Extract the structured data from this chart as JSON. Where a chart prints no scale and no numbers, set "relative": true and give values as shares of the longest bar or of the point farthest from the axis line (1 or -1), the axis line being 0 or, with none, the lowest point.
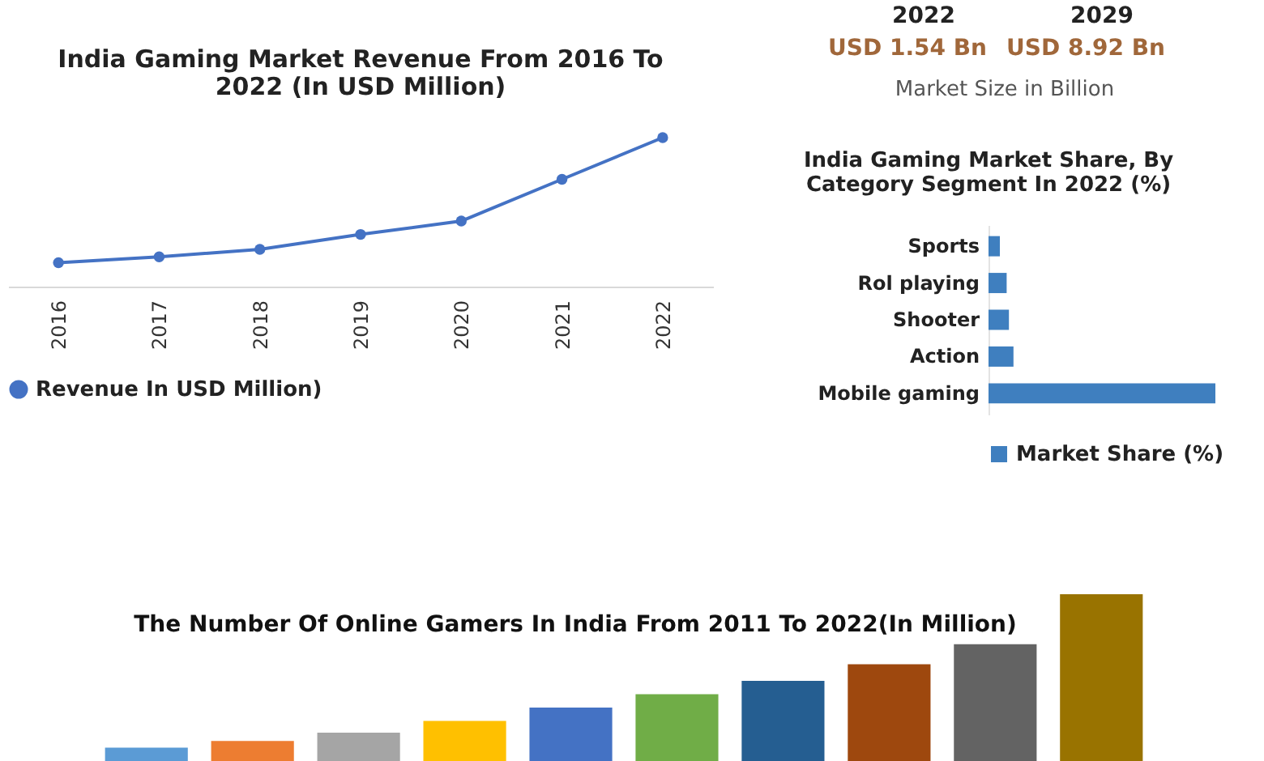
{
  "chart_data": [
    {
      "type": "line",
      "title": "India Gaming Market Revenue From 2016 To 2022 (In USD Million)",
      "categories": [
        "2016",
        "2017",
        "2018",
        "2019",
        "2020",
        "2021",
        "2022"
      ],
      "series": [
        {
          "name": "Revenue In USD Million)",
          "color": "#4472c4",
          "values": [
            0.16,
            0.2,
            0.25,
            0.35,
            0.44,
            0.72,
            1
          ]
        }
      ],
      "relative": true,
      "marker": "circle",
      "legend": "bottom"
    },
    {
      "type": "other",
      "annotations": [
        "2022",
        "2029",
        "USD 1.54 Bn",
        "USD 8.92 Bn",
        "Market Size in Billion"
      ]
    },
    {
      "type": "bar",
      "orientation": "horizontal",
      "title": "India Gaming Market Share, By Category Segment In 2022 (%)",
      "categories": [
        "Sports",
        "Rol playing",
        "Shooter",
        "Action",
        "Mobile gaming"
      ],
      "series": [
        {
          "name": "Market Share (%)",
          "color": "#3f7fbf",
          "values": [
            0.05,
            0.08,
            0.09,
            0.11,
            1
          ]
        }
      ],
      "relative": true,
      "legend": "bottom"
    },
    {
      "type": "bar",
      "title": "The Number Of Online Gamers In India From 2011 To 2022(In Million)",
      "categories": [
        null,
        null,
        null,
        null,
        null,
        null,
        null,
        null,
        null,
        null
      ],
      "values": [
        0.08,
        0.12,
        0.17,
        0.24,
        0.32,
        0.4,
        0.48,
        0.58,
        0.7,
        1
      ],
      "colors": [
        "#5b9bd5",
        "#ed7d31",
        "#a5a5a5",
        "#ffc000",
        "#4472c4",
        "#70ad47",
        "#255e91",
        "#9e480e",
        "#636363",
        "#997300"
      ],
      "relative": true
    }
  ]
}
